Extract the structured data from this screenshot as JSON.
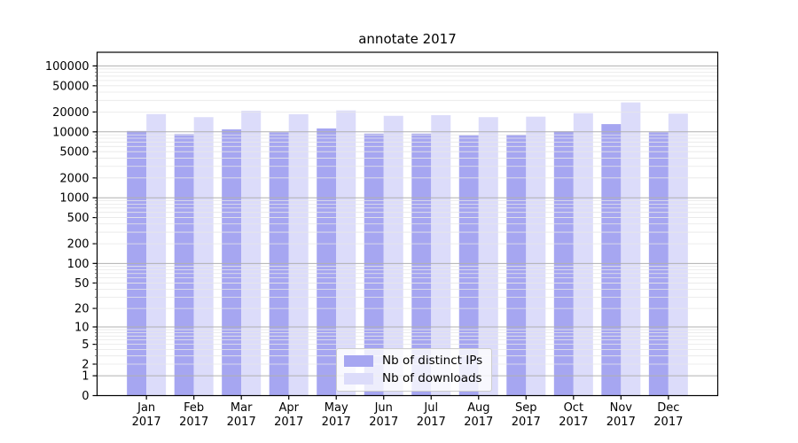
{
  "title": "annotate 2017",
  "chart_data": {
    "type": "bar",
    "title": "annotate 2017",
    "yscale": "log1p",
    "ylim": [
      0,
      161000
    ],
    "yticks": [
      0,
      1,
      2,
      5,
      10,
      20,
      50,
      100,
      200,
      500,
      1000,
      2000,
      5000,
      10000,
      20000,
      50000,
      100000
    ],
    "grid": "both",
    "legend_position": "lower center",
    "year": "2017",
    "categories": [
      "Jan",
      "Feb",
      "Mar",
      "Apr",
      "May",
      "Jun",
      "Jul",
      "Aug",
      "Sep",
      "Oct",
      "Nov",
      "Dec"
    ],
    "series": [
      {
        "name": "Nb of distinct IPs",
        "color": "#a6a6f1",
        "values": [
          10300,
          9250,
          10900,
          9850,
          11250,
          9400,
          9400,
          8850,
          8950,
          10200,
          13100,
          9850
        ]
      },
      {
        "name": "Nb of downloads",
        "color": "#dcdcfa",
        "values": [
          18600,
          16700,
          20900,
          18500,
          21100,
          17500,
          17900,
          16700,
          17000,
          19200,
          27900,
          18900
        ]
      }
    ],
    "colors": {
      "grid_major": "#b0b0b0",
      "grid_minor": "#e7e7e7",
      "frame": "#000000",
      "text": "#000000"
    }
  }
}
